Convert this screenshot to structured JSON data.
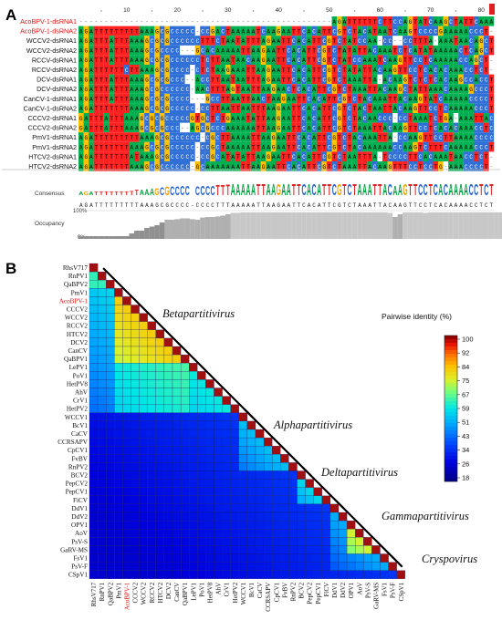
{
  "panel_a": {
    "letter": "A",
    "ruler_ticks": [
      "10",
      "20",
      "30",
      "40",
      "50",
      "60",
      "70",
      "80"
    ],
    "sequences": [
      {
        "name": "AcoBPV-1-dsRNA1",
        "highlight": true,
        "seq": "--------------------------------------------------AGATTTTTTCTTCCAGTATCAAGCTATTCAAAAGCCACT"
      },
      {
        "name": "AcoBPV-1-dsRNA2",
        "highlight": true,
        "seq": "AGATTTTTTTTTAAAGCGCCCCC-CCGACTAAAAATCAAGAATTCACATTCGTCTACATAATCAAGTCCCCGAAAAACCCT"
      },
      {
        "name": "WCCV2-dsRNA1",
        "highlight": false,
        "seq": "AGATTTATTTAAAGCGCGCCCCCCTTTCTAATATTTAGAATTCACATTCGTCTATCCAA-CC--CCTTTA-AAATAACAGCT"
      },
      {
        "name": "WCCV2-dsRNA2",
        "highlight": false,
        "seq": "AGATTTATTTAAAGCGCCCC---GCACAAAAATTAAGAATTCACATTCGTCTATATTACAAATCTCATATAAAAACTCAGCT"
      },
      {
        "name": "RCCV-dsRNA1",
        "highlight": false,
        "seq": "AGATTTATTTAAAGCGCGCCCCCCTCTTAATAACAAGAATTCACATTCGTCTATCCAAATCAAGTTCCTCAAAAACCAGCT"
      },
      {
        "name": "RCCV-dsRNA2",
        "highlight": false,
        "seq": "AGATTTTTTCTTAAAGCGCCCC-CTCTAAGAAATTAAGAATTCACATTCGTCTATATTACAAGTTCCTCACACAAACCTCT"
      },
      {
        "name": "DCV-dsRNA1",
        "highlight": false,
        "seq": "AGATTTATTTAAAGCGCGCCC--ACCTTAATAATTTAGAATTCACATTCGTCTAAATTA-ACAAGTCTCTCACAAGCCACCT"
      },
      {
        "name": "DCV-dsRNA2",
        "highlight": false,
        "seq": "AGATTTATTTAAAGCGCCCCCC-AACTTTAGTAATTAAGAACTCACATTCGTCTAAATTACAAGCTATTAAACAAAAGCCCT"
      },
      {
        "name": "CanCV-1-dsRNA1",
        "highlight": false,
        "seq": "AGATTTATTTAAAGCGCGCCCC---GCCTTAATTAACTAAGAATTCACATTCGTCTACAAATTACAAGTATCAAAAACCCCT"
      },
      {
        "name": "CanCV-1-dsRNA2",
        "highlight": false,
        "seq": "AGATTTTTTTAAAGCGCGCCCCC-CCTTAATTAATTTAAGAATTCACATTCGTCTACTAATTACAAGTTCCTCAAAAACCCT"
      },
      {
        "name": "CCCV2-dsRNA1",
        "highlight": false,
        "seq": "GATTTATTTAAAGCGCGCCCCCGTGCTCTGAAATATTAAGAATTCACATTCGTCTACAACCC-CCTAAATCTGA-AAATTACAGCT"
      },
      {
        "name": "CCCV2-dsRNA2",
        "highlight": false,
        "seq": "GATTTATTTAAAGCGCGCCC--AGCGCCCAAAAAATTAAGAATTCACATTCGTCTAAATTACAAGTTCCTCACACAAACCTCT"
      },
      {
        "name": "PmV1-dsRNA1",
        "highlight": false,
        "seq": "AGATTTTTTTTTAAAGCGCCCCCC-CGCTTAAAATTAAGAATTCACATTCGTCTACAAATTA-CCAAGTTCCTTAAAACCCCT"
      },
      {
        "name": "PmV1-dsRNA2",
        "highlight": false,
        "seq": "AGATTTTTTTAAAGCGCGCCCCC-CCGCTAAAAATTAAGAATTCACATTCGTCTACAAAAAACCAAGTCTTTCAAAAACCCT"
      },
      {
        "name": "HTCV2-dsRNA1",
        "highlight": false,
        "seq": "AGATTTTTTTATAAAGCGCCCCC-CCGCATATATTAAGAATTCACATTCGTCTAATTTA-TCCCCTTCACAAATAACCTCT"
      },
      {
        "name": "HTCV2-dsRNA2",
        "highlight": false,
        "seq": "AGATTTTTTTAAAGCGCCCCCC-GCAAAAAAATTAAGAATTCACATTCGTCTAAATTACAAGTTTCCTCCTG-AAACCCCT"
      }
    ],
    "consensus_label": "Consensus",
    "consensus_seq": "AGATTTTTTTTTAAAGCGCCCC-CCCCTTTAAAAATTAAGAATTCACATTCGTCTAAATTACAAGTTCCTCACAAAACCTCT",
    "occupancy_label": "Occupancy",
    "occupancy_max": "100%",
    "occupancy_min": "0%",
    "occupancy_fraction": [
      0.1,
      0.1,
      0.1,
      0.1,
      0.1,
      0.1,
      0.1,
      0.1,
      0.1,
      0.1,
      0.2,
      0.3,
      0.3,
      0.4,
      0.45,
      0.5,
      0.6,
      0.7,
      0.7,
      0.72,
      0.75,
      0.75,
      0.72,
      0.7,
      0.78,
      0.8,
      0.8,
      0.82,
      0.85,
      0.9,
      0.95,
      0.95,
      0.97,
      0.97,
      0.97,
      0.97,
      0.97,
      0.97,
      0.97,
      0.97,
      0.97,
      0.97,
      0.97,
      0.97,
      0.97,
      0.97,
      0.97,
      0.97,
      0.97,
      0.97,
      0.97,
      0.97,
      0.97,
      0.97,
      0.97,
      0.97,
      0.97,
      0.97,
      0.97,
      0.97,
      0.97,
      0.95,
      0.8,
      0.9,
      0.97,
      0.97,
      0.97,
      0.97,
      0.95,
      0.97,
      0.97,
      0.97,
      0.97,
      0.97,
      0.97,
      0.97,
      0.97,
      0.97,
      0.97,
      0.97,
      0.97,
      0.97,
      0.97,
      0.97
    ]
  },
  "panel_b": {
    "letter": "B",
    "viruses": [
      "RhsV717",
      "RnPV1",
      "QaBPV2",
      "PmV1",
      "AcoBPV-1",
      "CCCV2",
      "WCCV2",
      "RCCV2",
      "HTCV2",
      "DCV2",
      "CanCV",
      "QaBPV1",
      "LePV1",
      "PoV1",
      "HetPV8",
      "AhV",
      "CrV1",
      "HetPV2",
      "WCCV1",
      "BcV1",
      "CaCV",
      "CCRSAPV",
      "CpCV1",
      "FvBV",
      "RnPV2",
      "BCV2",
      "PepCV2",
      "PepCV1",
      "FiCV",
      "DdV1",
      "DdV2",
      "OPV1",
      "AoV",
      "PsV-S",
      "GaRV-MS",
      "FsV1",
      "PsV-F",
      "CSpV1"
    ],
    "highlight_virus": "AcoBPV-1",
    "clades": [
      {
        "name": "Betapartitivirus",
        "start": 1,
        "end": 18
      },
      {
        "name": "Alphapartitivirus",
        "start": 18,
        "end": 25
      },
      {
        "name": "Deltapartitivirus",
        "start": 25,
        "end": 29
      },
      {
        "name": "Gammapartitivirus",
        "start": 29,
        "end": 36
      },
      {
        "name": "Cryspovirus",
        "start": 37,
        "end": 37
      }
    ],
    "legend": {
      "title": "Pairwise identity (%)",
      "ticks": [
        "100",
        "92",
        "84",
        "75",
        "67",
        "59",
        "51",
        "43",
        "34",
        "26",
        "18"
      ]
    }
  }
}
